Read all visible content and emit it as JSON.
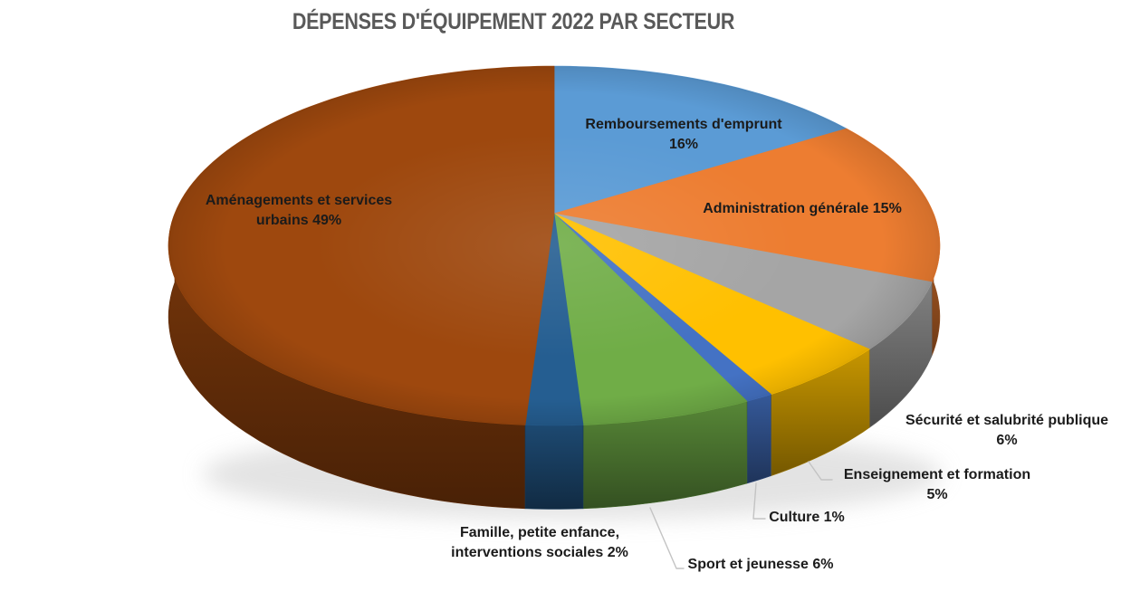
{
  "chart_data": {
    "type": "pie",
    "style": "3d",
    "title": "DÉPENSES D'ÉQUIPEMENT 2022 PAR SECTEUR",
    "unit": "%",
    "start_angle_deg": 0,
    "direction": "clockwise",
    "legend_position": "none",
    "labels_on_chart": true,
    "colors": {
      "title": "#595959",
      "labels": "#1B1B1B",
      "leader": "#C3C3C3",
      "background": "#FFFFFF"
    },
    "slices": [
      {
        "label": "Remboursements d'emprunt",
        "value": 16,
        "color": "#5B9BD5",
        "label_lines": [
          "Remboursements d'emprunt",
          "16%"
        ]
      },
      {
        "label": "Administration générale",
        "value": 15,
        "color": "#ED7D31",
        "label_lines": [
          "Administration générale 15%"
        ]
      },
      {
        "label": "Sécurité et salubrité publique",
        "value": 6,
        "color": "#A5A5A5",
        "label_lines": [
          "Sécurité et salubrité publique",
          "6%"
        ]
      },
      {
        "label": "Enseignement et formation",
        "value": 5,
        "color": "#FFC000",
        "label_lines": [
          "Enseignement et formation",
          "5%"
        ]
      },
      {
        "label": "Culture",
        "value": 1,
        "color": "#4472C4",
        "label_lines": [
          "Culture 1%"
        ]
      },
      {
        "label": "Sport et jeunesse",
        "value": 6,
        "color": "#70AD47",
        "label_lines": [
          "Sport et jeunesse 6%"
        ]
      },
      {
        "label": "Famille, petite enfance, interventions sociales",
        "value": 2,
        "color": "#255E91",
        "label_lines": [
          "Famille, petite enfance,",
          "interventions sociales 2%"
        ]
      },
      {
        "label": "Aménagements et services urbains",
        "value": 49,
        "color": "#9E480E",
        "label_lines": [
          "Aménagements et services",
          "urbains 49%"
        ]
      }
    ]
  }
}
